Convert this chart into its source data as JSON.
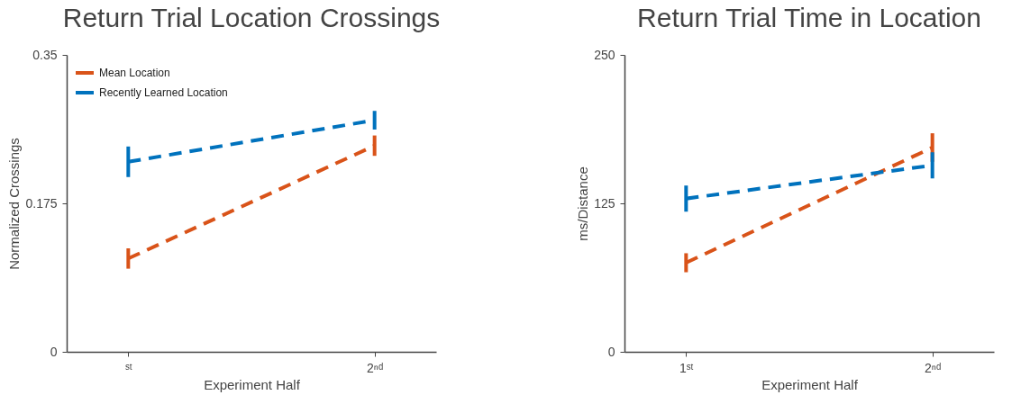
{
  "chart_data": [
    {
      "type": "line",
      "title": "Return Trial Location Crossings",
      "xlabel": "Experiment Half",
      "ylabel": "Normalized Crossings",
      "categories": [
        "ˢᵗ",
        "2ⁿᵈ"
      ],
      "ylim": [
        0,
        0.35
      ],
      "yticks": [
        0,
        0.175,
        0.35
      ],
      "grid": false,
      "legend": "top left",
      "line_style": "dashed",
      "marker": "none",
      "series": [
        {
          "name": "Mean Location",
          "color": "#d95319",
          "values": [
            0.11,
            0.243
          ],
          "errors": [
            0.012,
            0.012
          ]
        },
        {
          "name": "Recently Learned Location",
          "color": "#0072bd",
          "values": [
            0.224,
            0.273
          ],
          "errors": [
            0.018,
            0.011
          ]
        }
      ]
    },
    {
      "type": "line",
      "title": "Return Trial Time in Location",
      "xlabel": "Experiment Half",
      "ylabel": "ms/Distance",
      "categories": [
        "1ˢᵗ",
        "2ⁿᵈ"
      ],
      "ylim": [
        0,
        250
      ],
      "yticks": [
        0,
        125,
        250
      ],
      "grid": false,
      "legend": "top left",
      "line_style": "dashed",
      "marker": "none",
      "series": [
        {
          "name": "Mean Location",
          "color": "#d95319",
          "values": [
            75,
            172
          ],
          "errors": [
            8,
            12
          ]
        },
        {
          "name": "Recently Learned Location",
          "color": "#0072bd",
          "values": [
            129,
            157
          ],
          "errors": [
            11,
            11
          ]
        }
      ]
    }
  ]
}
